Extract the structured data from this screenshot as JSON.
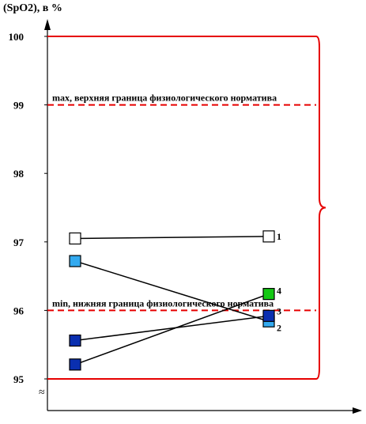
{
  "chart_data": {
    "type": "line",
    "y_axis_label": "(SpO2), в %",
    "y_ticks": [
      "100",
      "99",
      "98",
      "97",
      "96",
      "95"
    ],
    "y_tick_values": [
      100,
      99,
      98,
      97,
      96,
      95
    ],
    "ylim": [
      95,
      100
    ],
    "y_axis_break_marker": "≈",
    "grid": false,
    "x": [
      "left",
      "right"
    ],
    "reference_lines": [
      {
        "name": "max",
        "label": "max, верхняя граница физиологического норматива",
        "value": 99,
        "color": "#e60000",
        "style": "dashed"
      },
      {
        "name": "min",
        "label": "min, нижняя граница физиологического норматива",
        "value": 96,
        "color": "#e60000",
        "style": "dashed"
      },
      {
        "name": "top-boundary",
        "value": 100,
        "color": "#e60000",
        "style": "solid"
      },
      {
        "name": "bottom-boundary",
        "value": 95,
        "color": "#e60000",
        "style": "solid"
      }
    ],
    "series": [
      {
        "name": "1",
        "values": [
          97.05,
          97.08
        ],
        "marker_fill": "#ffffff",
        "marker_stroke": "#000000"
      },
      {
        "name": "2",
        "values": [
          96.72,
          95.84
        ],
        "marker_fill": "#33aaf0",
        "marker_stroke": "#000000"
      },
      {
        "name": "3",
        "values": [
          95.56,
          95.92
        ],
        "marker_fill": "#0a2fb0",
        "marker_stroke": "#000000"
      },
      {
        "name": "4",
        "values": [
          95.21,
          96.24
        ],
        "marker_fill": "#14c814",
        "marker_stroke": "#000000"
      }
    ],
    "left_series_fill_overrides": {
      "4": "#0a2fb0"
    },
    "bracket_color": "#e60000"
  }
}
